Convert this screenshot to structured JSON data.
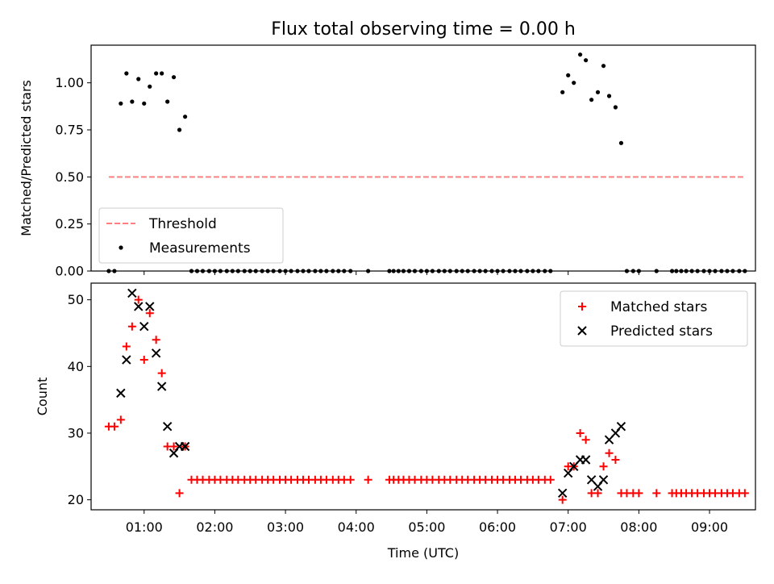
{
  "figure_title": "Flux total observing time = 0.00 h",
  "chart_data": [
    {
      "type": "scatter",
      "panel": "top",
      "ylabel": "Matched/Predicted stars",
      "ylim": [
        0,
        1.2
      ],
      "xlim": [
        0.25,
        9.65
      ],
      "yticks": [
        0.0,
        0.25,
        0.5,
        0.75,
        1.0
      ],
      "ytick_labels": [
        "0.00",
        "0.25",
        "0.50",
        "0.75",
        "1.00"
      ],
      "xticks": [
        1,
        2,
        3,
        4,
        5,
        6,
        7,
        8,
        9
      ],
      "legend_position": "lower-left",
      "series": [
        {
          "name": "Threshold",
          "kind": "dashed-line",
          "color": "#ff8080",
          "x": [
            0.5,
            9.5
          ],
          "y": [
            0.5,
            0.5
          ]
        },
        {
          "name": "Measurements",
          "kind": "dot",
          "color": "#000000",
          "points": [
            [
              0.5,
              0.0
            ],
            [
              0.58,
              0.0
            ],
            [
              0.67,
              0.89
            ],
            [
              0.75,
              1.05
            ],
            [
              0.83,
              0.9
            ],
            [
              0.92,
              1.02
            ],
            [
              1.0,
              0.89
            ],
            [
              1.08,
              0.98
            ],
            [
              1.17,
              1.05
            ],
            [
              1.25,
              1.05
            ],
            [
              1.33,
              0.9
            ],
            [
              1.42,
              1.03
            ],
            [
              1.5,
              0.75
            ],
            [
              1.58,
              0.82
            ],
            [
              1.67,
              0.0
            ],
            [
              1.75,
              0.0
            ],
            [
              1.83,
              0.0
            ],
            [
              1.92,
              0.0
            ],
            [
              2.0,
              0.0
            ],
            [
              2.08,
              0.0
            ],
            [
              2.17,
              0.0
            ],
            [
              2.25,
              0.0
            ],
            [
              2.33,
              0.0
            ],
            [
              2.42,
              0.0
            ],
            [
              2.5,
              0.0
            ],
            [
              2.58,
              0.0
            ],
            [
              2.67,
              0.0
            ],
            [
              2.75,
              0.0
            ],
            [
              2.83,
              0.0
            ],
            [
              2.92,
              0.0
            ],
            [
              3.0,
              0.0
            ],
            [
              3.08,
              0.0
            ],
            [
              3.17,
              0.0
            ],
            [
              3.25,
              0.0
            ],
            [
              3.33,
              0.0
            ],
            [
              3.42,
              0.0
            ],
            [
              3.5,
              0.0
            ],
            [
              3.58,
              0.0
            ],
            [
              3.67,
              0.0
            ],
            [
              3.75,
              0.0
            ],
            [
              3.83,
              0.0
            ],
            [
              3.92,
              0.0
            ],
            [
              4.17,
              0.0
            ],
            [
              4.47,
              0.0
            ],
            [
              4.53,
              0.0
            ],
            [
              4.6,
              0.0
            ],
            [
              4.67,
              0.0
            ],
            [
              4.75,
              0.0
            ],
            [
              4.83,
              0.0
            ],
            [
              4.92,
              0.0
            ],
            [
              5.0,
              0.0
            ],
            [
              5.08,
              0.0
            ],
            [
              5.17,
              0.0
            ],
            [
              5.25,
              0.0
            ],
            [
              5.33,
              0.0
            ],
            [
              5.42,
              0.0
            ],
            [
              5.5,
              0.0
            ],
            [
              5.58,
              0.0
            ],
            [
              5.67,
              0.0
            ],
            [
              5.75,
              0.0
            ],
            [
              5.83,
              0.0
            ],
            [
              5.92,
              0.0
            ],
            [
              6.0,
              0.0
            ],
            [
              6.08,
              0.0
            ],
            [
              6.17,
              0.0
            ],
            [
              6.25,
              0.0
            ],
            [
              6.33,
              0.0
            ],
            [
              6.42,
              0.0
            ],
            [
              6.5,
              0.0
            ],
            [
              6.58,
              0.0
            ],
            [
              6.67,
              0.0
            ],
            [
              6.75,
              0.0
            ],
            [
              6.92,
              0.95
            ],
            [
              7.0,
              1.04
            ],
            [
              7.08,
              1.0
            ],
            [
              7.17,
              1.15
            ],
            [
              7.25,
              1.12
            ],
            [
              7.33,
              0.91
            ],
            [
              7.42,
              0.95
            ],
            [
              7.5,
              1.09
            ],
            [
              7.58,
              0.93
            ],
            [
              7.67,
              0.87
            ],
            [
              7.75,
              0.68
            ],
            [
              7.83,
              0.0
            ],
            [
              7.92,
              0.0
            ],
            [
              8.0,
              0.0
            ],
            [
              8.25,
              0.0
            ],
            [
              8.47,
              0.0
            ],
            [
              8.53,
              0.0
            ],
            [
              8.6,
              0.0
            ],
            [
              8.67,
              0.0
            ],
            [
              8.75,
              0.0
            ],
            [
              8.83,
              0.0
            ],
            [
              8.92,
              0.0
            ],
            [
              9.0,
              0.0
            ],
            [
              9.08,
              0.0
            ],
            [
              9.17,
              0.0
            ],
            [
              9.25,
              0.0
            ],
            [
              9.33,
              0.0
            ],
            [
              9.42,
              0.0
            ],
            [
              9.5,
              0.0
            ]
          ]
        }
      ]
    },
    {
      "type": "scatter",
      "panel": "bottom",
      "xlabel": "Time (UTC)",
      "ylabel": "Count",
      "ylim": [
        18.5,
        52.5
      ],
      "xlim": [
        0.25,
        9.65
      ],
      "yticks": [
        20,
        30,
        40,
        50
      ],
      "xticks": [
        1,
        2,
        3,
        4,
        5,
        6,
        7,
        8,
        9
      ],
      "xtick_labels": [
        "01:00",
        "02:00",
        "03:00",
        "04:00",
        "05:00",
        "06:00",
        "07:00",
        "08:00",
        "09:00"
      ],
      "legend_position": "top-right",
      "series": [
        {
          "name": "Matched stars",
          "kind": "plus",
          "color": "#ff0000",
          "points": [
            [
              0.5,
              31
            ],
            [
              0.58,
              31
            ],
            [
              0.67,
              32
            ],
            [
              0.75,
              43
            ],
            [
              0.83,
              46
            ],
            [
              0.92,
              50
            ],
            [
              1.0,
              41
            ],
            [
              1.08,
              48
            ],
            [
              1.17,
              44
            ],
            [
              1.25,
              39
            ],
            [
              1.33,
              28
            ],
            [
              1.42,
              28
            ],
            [
              1.5,
              21
            ],
            [
              1.58,
              28
            ],
            [
              1.67,
              23
            ],
            [
              1.75,
              23
            ],
            [
              1.83,
              23
            ],
            [
              1.92,
              23
            ],
            [
              2.0,
              23
            ],
            [
              2.08,
              23
            ],
            [
              2.17,
              23
            ],
            [
              2.25,
              23
            ],
            [
              2.33,
              23
            ],
            [
              2.42,
              23
            ],
            [
              2.5,
              23
            ],
            [
              2.58,
              23
            ],
            [
              2.67,
              23
            ],
            [
              2.75,
              23
            ],
            [
              2.83,
              23
            ],
            [
              2.92,
              23
            ],
            [
              3.0,
              23
            ],
            [
              3.08,
              23
            ],
            [
              3.17,
              23
            ],
            [
              3.25,
              23
            ],
            [
              3.33,
              23
            ],
            [
              3.42,
              23
            ],
            [
              3.5,
              23
            ],
            [
              3.58,
              23
            ],
            [
              3.67,
              23
            ],
            [
              3.75,
              23
            ],
            [
              3.83,
              23
            ],
            [
              3.92,
              23
            ],
            [
              4.17,
              23
            ],
            [
              4.47,
              23
            ],
            [
              4.53,
              23
            ],
            [
              4.6,
              23
            ],
            [
              4.67,
              23
            ],
            [
              4.75,
              23
            ],
            [
              4.83,
              23
            ],
            [
              4.92,
              23
            ],
            [
              5.0,
              23
            ],
            [
              5.08,
              23
            ],
            [
              5.17,
              23
            ],
            [
              5.25,
              23
            ],
            [
              5.33,
              23
            ],
            [
              5.42,
              23
            ],
            [
              5.5,
              23
            ],
            [
              5.58,
              23
            ],
            [
              5.67,
              23
            ],
            [
              5.75,
              23
            ],
            [
              5.83,
              23
            ],
            [
              5.92,
              23
            ],
            [
              6.0,
              23
            ],
            [
              6.08,
              23
            ],
            [
              6.17,
              23
            ],
            [
              6.25,
              23
            ],
            [
              6.33,
              23
            ],
            [
              6.42,
              23
            ],
            [
              6.5,
              23
            ],
            [
              6.58,
              23
            ],
            [
              6.67,
              23
            ],
            [
              6.75,
              23
            ],
            [
              6.92,
              20
            ],
            [
              7.0,
              25
            ],
            [
              7.08,
              25
            ],
            [
              7.17,
              30
            ],
            [
              7.25,
              29
            ],
            [
              7.33,
              21
            ],
            [
              7.42,
              21
            ],
            [
              7.5,
              25
            ],
            [
              7.58,
              27
            ],
            [
              7.67,
              26
            ],
            [
              7.75,
              21
            ],
            [
              7.83,
              21
            ],
            [
              7.92,
              21
            ],
            [
              8.0,
              21
            ],
            [
              8.25,
              21
            ],
            [
              8.47,
              21
            ],
            [
              8.53,
              21
            ],
            [
              8.6,
              21
            ],
            [
              8.67,
              21
            ],
            [
              8.75,
              21
            ],
            [
              8.83,
              21
            ],
            [
              8.92,
              21
            ],
            [
              9.0,
              21
            ],
            [
              9.08,
              21
            ],
            [
              9.17,
              21
            ],
            [
              9.25,
              21
            ],
            [
              9.33,
              21
            ],
            [
              9.42,
              21
            ],
            [
              9.5,
              21
            ]
          ]
        },
        {
          "name": "Predicted stars",
          "kind": "x",
          "color": "#000000",
          "points": [
            [
              0.67,
              36
            ],
            [
              0.75,
              41
            ],
            [
              0.83,
              51
            ],
            [
              0.92,
              49
            ],
            [
              1.0,
              46
            ],
            [
              1.08,
              49
            ],
            [
              1.17,
              42
            ],
            [
              1.25,
              37
            ],
            [
              1.33,
              31
            ],
            [
              1.42,
              27
            ],
            [
              1.5,
              28
            ],
            [
              1.58,
              28
            ],
            [
              6.92,
              21
            ],
            [
              7.0,
              24
            ],
            [
              7.08,
              25
            ],
            [
              7.17,
              26
            ],
            [
              7.25,
              26
            ],
            [
              7.33,
              23
            ],
            [
              7.42,
              22
            ],
            [
              7.5,
              23
            ],
            [
              7.58,
              29
            ],
            [
              7.67,
              30
            ],
            [
              7.75,
              31
            ]
          ]
        }
      ]
    }
  ]
}
